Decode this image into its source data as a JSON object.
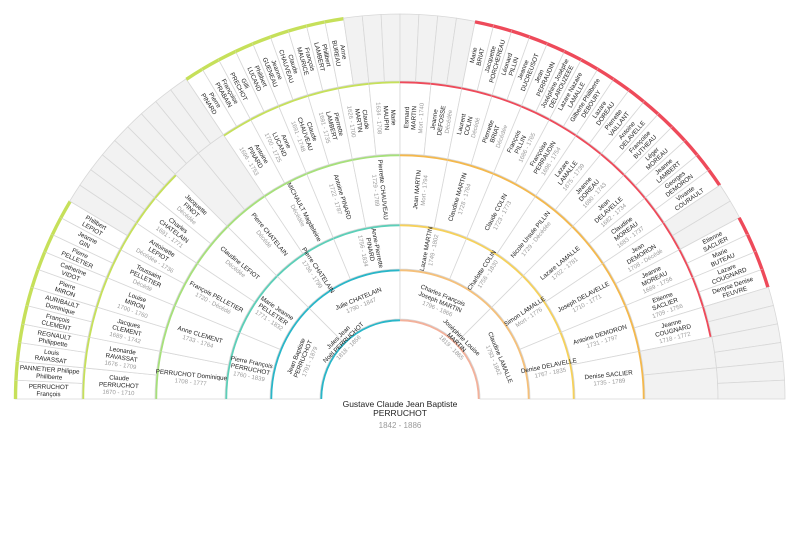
{
  "root": {
    "name": "Gustave Claude Jean Baptiste PERRUCHOT",
    "dates": "1842 - 1886"
  },
  "ring_colors": {
    "left": [
      "#29b6c8",
      "#29b6c8",
      "#5ccfb8",
      "#a6e07a",
      "#c6e05a"
    ],
    "right": [
      "#f3b19b",
      "#f5c07a",
      "#f6d15a",
      "#f4b84c",
      "#ee4a5a"
    ]
  },
  "generations": {
    "g1": [
      {
        "name": "Jules Jean Noël PERRUCHOT",
        "dates": "1818 - 1856"
      },
      {
        "name": "Joséphine Louise MARTIN",
        "dates": "1819 - 1865"
      }
    ],
    "g2": [
      {
        "name": "Jean Baptiste PERRUCHOT",
        "dates": "1791 - 1879"
      },
      {
        "name": "Julie CHATELAIN",
        "dates": "1790 - 1847"
      },
      {
        "name": "Charles François Joseph MARTIN",
        "dates": "1796 - 1866"
      },
      {
        "name": "Claudine LAMALLE",
        "dates": "1793 - 1862"
      }
    ],
    "g3": [
      {
        "name": "Pierre François PERRUCHOT",
        "dates": "1760 - 1839"
      },
      {
        "name": "Marie Jeanne PELLETIER",
        "dates": "1771 - 1832"
      },
      {
        "name": "Pierre CHATELAIN",
        "dates": "1736 - 1799"
      },
      {
        "name": "Anne-Pierrette PINARD",
        "dates": "1756 - 1834"
      },
      {
        "name": "Lazare MARTIN",
        "dates": "1749 - 1802"
      },
      {
        "name": "Charlotte COLIN",
        "dates": "1756 - 1830"
      },
      {
        "name": "Simon LAMALLE",
        "dates": "Mort - 1776"
      },
      {
        "name": "Denise DELAVELLE",
        "dates": "1767 - 1835"
      }
    ],
    "g4": [
      {
        "name": "PERRUCHOT Dominique",
        "dates": "1708 - 1777"
      },
      {
        "name": "Anne CLEMENT",
        "dates": "1733 - 1764"
      },
      {
        "name": "François PELLETIER",
        "dates": "1720 - Décédé"
      },
      {
        "name": "Claudine LEFIOT",
        "dates": "Décédée"
      },
      {
        "name": "Pierre CHATELAIN",
        "dates": "Décédé"
      },
      {
        "name": "MICHAULT Magdeleine",
        "dates": "Décédée"
      },
      {
        "name": "Antoine PINARD",
        "dates": "1722 - 1787"
      },
      {
        "name": "Pierrette CHAUVEAU",
        "dates": "1729 - 1789"
      },
      {
        "name": "Jean MARTIN",
        "dates": "Mort - 1794"
      },
      {
        "name": "Claudine MARTIN",
        "dates": "1728 - 1784"
      },
      {
        "name": "Claude COLIN",
        "dates": "1723 - 1773"
      },
      {
        "name": "Nicole Ursule PILLIN",
        "dates": "1729 - Décédée"
      },
      {
        "name": "Lazare LAMALLE",
        "dates": "1702 - 1781"
      },
      {
        "name": "Joseph DELAVELLE",
        "dates": "1710 - 1771"
      },
      {
        "name": "Antoine DEMORON",
        "dates": "1731 - 1797"
      },
      {
        "name": "Denise SACLIER",
        "dates": "1735 - 1789"
      }
    ],
    "g5": [
      {
        "name": "Claude PERRUCHOT",
        "dates": "1670 - 1710"
      },
      {
        "name": "Leonarde RAVASSAT",
        "dates": "1676 - 1709"
      },
      {
        "name": "Jacques CLEMENT",
        "dates": "1689 - 1742"
      },
      {
        "name": "Louise MIRON",
        "dates": "1700 - 1760"
      },
      {
        "name": "Toussaint PELLETIER",
        "dates": "Décédé"
      },
      {
        "name": "Antoinette LEPIOT",
        "dates": "Décédée - 1736"
      },
      {
        "name": "Charles CHATELAIN",
        "dates": "1691 - 1771"
      },
      {
        "name": "Jacquette FINOT",
        "dates": "Décédée"
      },
      {
        "name": "",
        "dates": ""
      },
      {
        "name": "",
        "dates": ""
      },
      {
        "name": "Antoine PINARD",
        "dates": "1696 - 1753"
      },
      {
        "name": "Anne LUCAND",
        "dates": "1700 - 1725"
      },
      {
        "name": "Claude CHAUVEAU",
        "dates": "1691 - 1748"
      },
      {
        "name": "Pierrette LAMBERT",
        "dates": "1691 - 1735"
      },
      {
        "name": "Claude MARTIN",
        "dates": "1626 - 1700"
      },
      {
        "name": "Marie MAUPIN",
        "dates": "1634 - 1708"
      },
      {
        "name": "Esmard MARTIN",
        "dates": "Mort - 1740"
      },
      {
        "name": "Jeanne DEFOSSE",
        "dates": "Décédée"
      },
      {
        "name": "Laurent COLIN",
        "dates": "Décédé"
      },
      {
        "name": "Pierrette BRIAT",
        "dates": "Décédée"
      },
      {
        "name": "François PILLIN",
        "dates": "1686 - 1765"
      },
      {
        "name": "Françoise PERRAUDIN",
        "dates": "1696 - 1754"
      },
      {
        "name": "Lazare LAMALLE",
        "dates": "1675 - 1739"
      },
      {
        "name": "Jeanne DOREAU",
        "dates": "1680 - 1743"
      },
      {
        "name": "Jean DELAVELLE",
        "dates": "1682 - 1734"
      },
      {
        "name": "Claudine MOREAU",
        "dates": "1683 - 1737"
      },
      {
        "name": "Jean DEMORON",
        "dates": "1708 - Décédé"
      },
      {
        "name": "Jeanne MOREAU",
        "dates": "1689 - 1756"
      },
      {
        "name": "Etienne SACLIER",
        "dates": "1709 - 1756"
      },
      {
        "name": "Jeanne COUGNARD",
        "dates": "1718 - 1772"
      }
    ],
    "g6": [
      {
        "name": "PERRUCHOT François"
      },
      {
        "name": "PANNETIER Philippe Philiberte"
      },
      {
        "name": "Louis RAVASSAT"
      },
      {
        "name": "REGNAULT Philippette"
      },
      {
        "name": "François CLEMENT"
      },
      {
        "name": "AURIBAULT Dominique"
      },
      {
        "name": "Pierre MIRON"
      },
      {
        "name": "Catherine VIDOT"
      },
      {
        "name": "Pierre PELLETIER"
      },
      {
        "name": "Jeanne GIN"
      },
      {
        "name": "Philibert LEPIOT"
      },
      {
        "name": ""
      },
      {
        "name": ""
      },
      {
        "name": ""
      },
      {
        "name": ""
      },
      {
        "name": ""
      },
      {
        "name": ""
      },
      {
        "name": ""
      },
      {
        "name": ""
      },
      {
        "name": ""
      },
      {
        "name": "Pierre PINARD"
      },
      {
        "name": "Françoise PRABAIN"
      },
      {
        "name": "Gilli PRECHOT"
      },
      {
        "name": "Philibert LUCAND"
      },
      {
        "name": "Jeanne GUENEAU"
      },
      {
        "name": "Claude CHAUVEAU"
      },
      {
        "name": "François MAURICE"
      },
      {
        "name": "Philibert LAMBERT"
      },
      {
        "name": "Anne BUREAU"
      },
      {
        "name": ""
      },
      {
        "name": ""
      },
      {
        "name": ""
      },
      {
        "name": ""
      },
      {
        "name": ""
      },
      {
        "name": ""
      },
      {
        "name": ""
      },
      {
        "name": "Marie BRIAT"
      },
      {
        "name": "Jacquette PORCHEREAU"
      },
      {
        "name": "Léonard PILLIN"
      },
      {
        "name": "Jeanne DUCREUSOT"
      },
      {
        "name": "Jean PERRAUDIN"
      },
      {
        "name": "Joséphine Josèphe DELAROUZEEE"
      },
      {
        "name": "Lazare Nazaire LAMALLE"
      },
      {
        "name": "Gilberte Philiberte DEBOURY"
      },
      {
        "name": "Lazare DOREAU"
      },
      {
        "name": "Pierrette VAILLANT"
      },
      {
        "name": "Antoine DELAVELLE"
      },
      {
        "name": "Françoise BUTHEAU"
      },
      {
        "name": "Léger MOREAU"
      },
      {
        "name": "Jeanne LAMBERT"
      },
      {
        "name": "Georges DEMORON"
      },
      {
        "name": "Vivante COURAULT"
      },
      {
        "name": ""
      },
      {
        "name": ""
      },
      {
        "name": "Etienne SACLIER"
      },
      {
        "name": "Marie BUTEAU"
      },
      {
        "name": "Lazare COUGNARD"
      },
      {
        "name": "Denyse Denise FEUVRE"
      }
    ]
  }
}
